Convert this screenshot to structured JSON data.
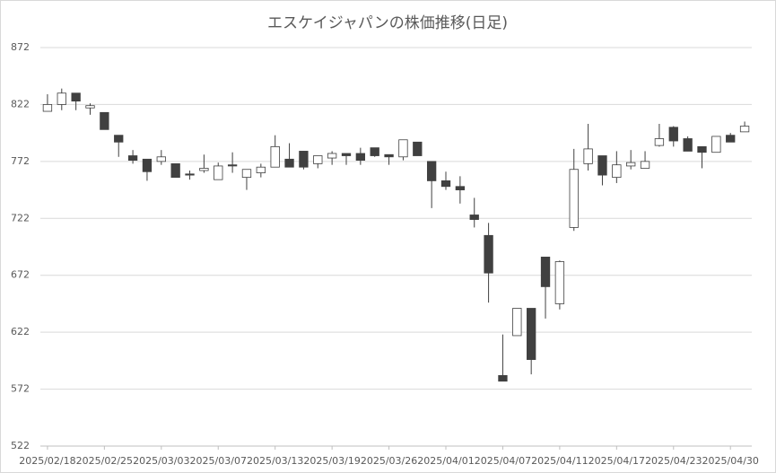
{
  "chart_data": {
    "type": "candlestick",
    "title": "エスケイジャパンの株価推移(日足)",
    "categories": [
      "2025/02/18",
      null,
      null,
      null,
      "2025/02/25",
      null,
      null,
      null,
      "2025/03/03",
      null,
      null,
      null,
      "2025/03/07",
      null,
      null,
      null,
      "2025/03/13",
      null,
      null,
      null,
      "2025/03/19",
      null,
      null,
      null,
      "2025/03/26",
      null,
      null,
      null,
      "2025/04/01",
      null,
      null,
      null,
      "2025/04/07",
      null,
      null,
      null,
      "2025/04/11",
      null,
      null,
      null,
      "2025/04/17",
      null,
      null,
      null,
      "2025/04/23",
      null,
      null,
      null,
      "2025/04/30",
      null
    ],
    "open": [
      816,
      822,
      832,
      819,
      815,
      795,
      777,
      774,
      772,
      770,
      761,
      764,
      756,
      769,
      758,
      762,
      767,
      774,
      781,
      770,
      775,
      779,
      779,
      784,
      778,
      776,
      789,
      772,
      755,
      750,
      725,
      707,
      584,
      619,
      643,
      688,
      647,
      714,
      770,
      777,
      758,
      768,
      766,
      786,
      802,
      792,
      785,
      780,
      795,
      798
    ],
    "high": [
      831,
      836,
      832,
      823,
      815,
      795,
      782,
      774,
      782,
      770,
      764,
      778,
      771,
      780,
      765,
      770,
      795,
      788,
      781,
      777,
      781,
      779,
      784,
      784,
      778,
      791,
      789,
      772,
      763,
      759,
      740,
      718,
      620,
      643,
      643,
      688,
      685,
      783,
      805,
      777,
      781,
      782,
      781,
      805,
      803,
      794,
      785,
      794,
      797,
      807
    ],
    "low": [
      816,
      817,
      817,
      813,
      800,
      776,
      770,
      755,
      769,
      758,
      756,
      762,
      756,
      762,
      747,
      758,
      767,
      767,
      765,
      766,
      769,
      769,
      769,
      776,
      769,
      773,
      777,
      731,
      747,
      735,
      714,
      648,
      579,
      619,
      585,
      634,
      642,
      711,
      764,
      751,
      753,
      765,
      766,
      785,
      785,
      781,
      766,
      780,
      789,
      798
    ],
    "close": [
      822,
      832,
      825,
      821,
      800,
      789,
      773,
      763,
      776,
      758,
      760,
      766,
      768,
      768,
      765,
      767,
      785,
      767,
      767,
      777,
      779,
      777,
      773,
      777,
      776,
      791,
      777,
      755,
      750,
      747,
      721,
      674,
      579,
      643,
      598,
      662,
      684,
      765,
      783,
      760,
      769,
      771,
      772,
      792,
      790,
      781,
      780,
      794,
      789,
      803
    ],
    "up_color": "#ffffff",
    "down_color": "#404040",
    "edge_color": "#404040",
    "ylim": [
      522,
      872
    ],
    "yticks": [
      522,
      572,
      622,
      672,
      722,
      772,
      822,
      872
    ],
    "grid": true
  }
}
